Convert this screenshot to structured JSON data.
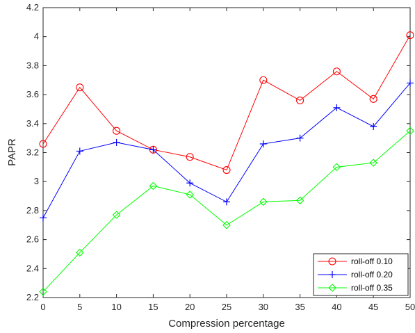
{
  "chart_data": {
    "type": "line",
    "xlabel": "Compression percentage",
    "ylabel": "PAPR",
    "xlim": [
      0,
      50
    ],
    "ylim": [
      2.2,
      4.2
    ],
    "xticks": [
      0,
      5,
      10,
      15,
      20,
      25,
      30,
      35,
      40,
      45,
      50
    ],
    "yticks": [
      2.2,
      2.4,
      2.6,
      2.8,
      3,
      3.2,
      3.4,
      3.6,
      3.8,
      4,
      4.2
    ],
    "x": [
      0,
      5,
      10,
      15,
      20,
      25,
      30,
      35,
      40,
      45,
      50
    ],
    "grid": false,
    "legend_position": "bottom-right",
    "series": [
      {
        "name": "roll-off 0.10",
        "color": "#ff0000",
        "marker": "circle",
        "values": [
          3.26,
          3.65,
          3.35,
          3.22,
          3.17,
          3.08,
          3.7,
          3.56,
          3.76,
          3.57,
          4.01
        ]
      },
      {
        "name": "roll-off 0.20",
        "color": "#0000ff",
        "marker": "plus",
        "values": [
          2.75,
          3.21,
          3.27,
          3.22,
          2.99,
          2.86,
          3.26,
          3.3,
          3.51,
          3.38,
          3.68
        ]
      },
      {
        "name": "roll-off 0.35",
        "color": "#00ff00",
        "marker": "diamond",
        "values": [
          2.24,
          2.51,
          2.77,
          2.97,
          2.91,
          2.7,
          2.86,
          2.87,
          3.1,
          3.13,
          3.35
        ]
      }
    ]
  }
}
